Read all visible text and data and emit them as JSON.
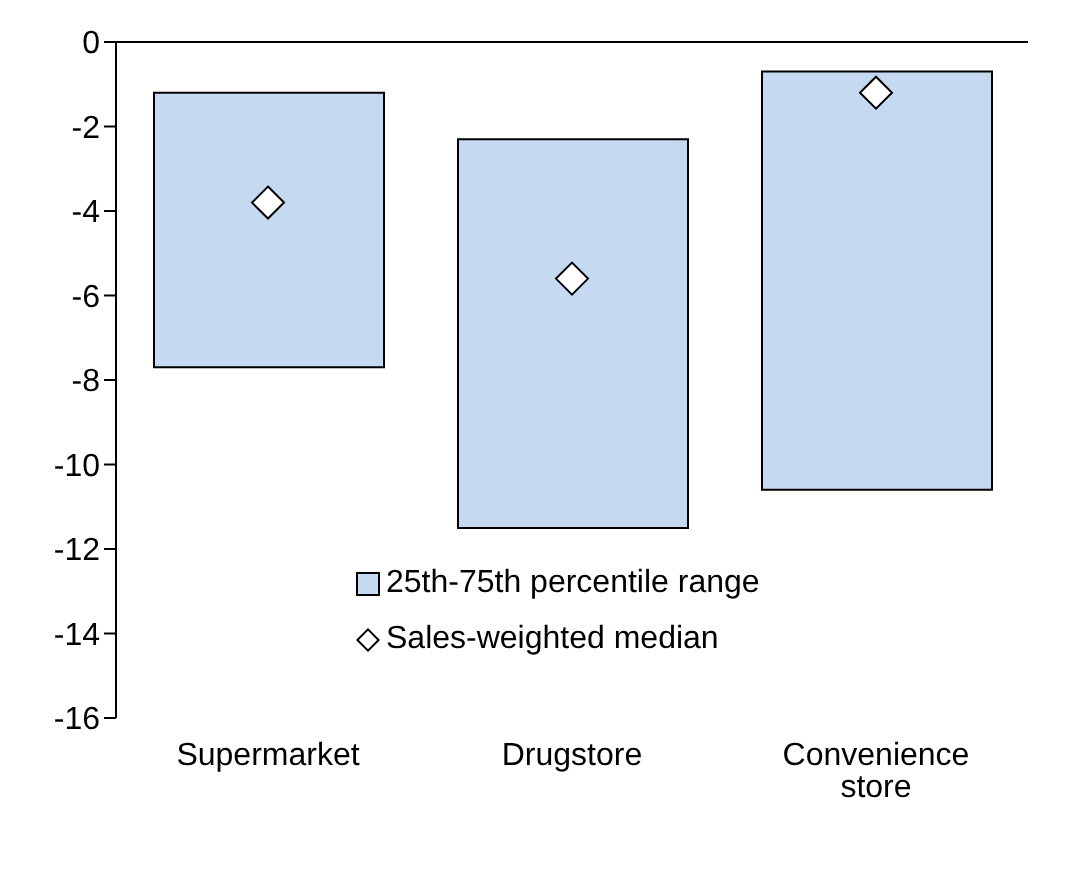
{
  "chart_data": {
    "type": "bar",
    "categories": [
      "Supermarket",
      "Drugstore",
      "Convenience store"
    ],
    "series": [
      {
        "name": "25th-75th percentile range",
        "color": "#c5d9f1",
        "base": [
          -7.7,
          -11.5,
          -10.6
        ],
        "values": [
          6.5,
          9.2,
          9.9
        ]
      },
      {
        "type": "scatter",
        "name": "Sales-weighted median",
        "color": "#ffffff",
        "marker": "diamond",
        "values": [
          -3.8,
          -5.6,
          -1.2
        ]
      }
    ],
    "ylim": [
      -16,
      0
    ],
    "yticks": [
      -16,
      -14,
      -12,
      -10,
      -8,
      -6,
      -4,
      -2,
      0
    ],
    "legend": "bottom right"
  }
}
